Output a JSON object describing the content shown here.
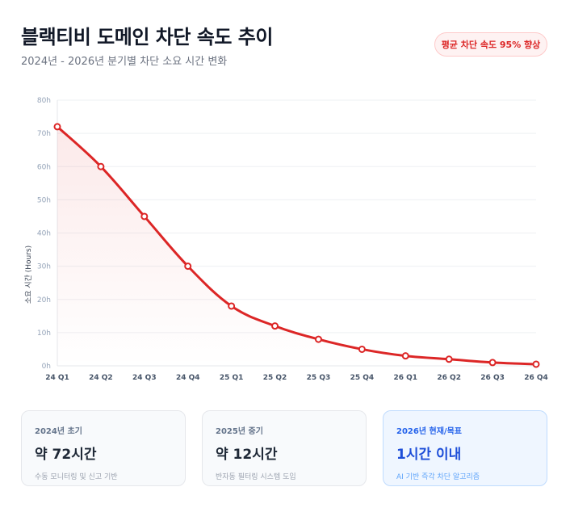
{
  "header": {
    "title": "블랙티비 도메인 차단 속도 추이",
    "subtitle": "2024년 - 2026년 분기별 차단 소요 시간 변화",
    "badge": "평균 차단 속도 95% 향상"
  },
  "chart_data": {
    "type": "line",
    "title": "",
    "xlabel": "",
    "ylabel": "소요 시간 (Hours)",
    "categories": [
      "24 Q1",
      "24 Q2",
      "24 Q3",
      "24 Q4",
      "25 Q1",
      "25 Q2",
      "25 Q3",
      "25 Q4",
      "26 Q1",
      "26 Q2",
      "26 Q3",
      "26 Q4"
    ],
    "values": [
      72,
      60,
      45,
      30,
      18,
      12,
      8,
      5,
      3,
      2,
      1,
      0.5
    ],
    "ylim": [
      0,
      80
    ],
    "yticks": [
      "0h",
      "10h",
      "20h",
      "30h",
      "40h",
      "50h",
      "60h",
      "70h",
      "80h"
    ],
    "grid": true,
    "line_color": "#dc2626",
    "fill": "area-gradient"
  },
  "cards": [
    {
      "label": "2024년 초기",
      "value": "약 72시간",
      "desc": "수동 모니터링 및 신고 기반"
    },
    {
      "label": "2025년 중기",
      "value": "약 12시간",
      "desc": "반자동 필터링 시스템 도입"
    },
    {
      "label": "2026년 현재/목표",
      "value": "1시간 이내",
      "desc": "AI 기반 즉각 차단 알고리즘"
    }
  ],
  "colors": {
    "accent": "#dc2626",
    "highlight": "#2563eb"
  }
}
